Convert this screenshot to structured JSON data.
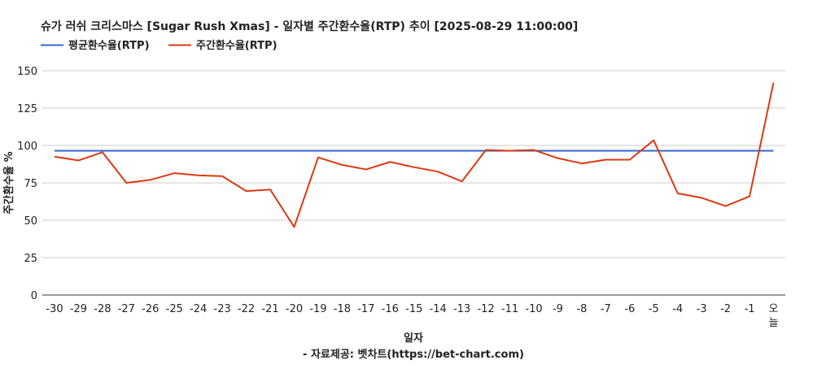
{
  "chart_data": {
    "type": "line",
    "title": "슈가 러쉬 크리스마스 [Sugar Rush Xmas] - 일자별 주간환수율(RTP) 추이 [2025-08-29 11:00:00]",
    "xlabel": "일자",
    "ylabel": "주간환수율 %",
    "source": "- 자료제공: 벳차트(https://bet-chart.com)",
    "ylim": [
      0,
      150
    ],
    "yticks": [
      0,
      25,
      50,
      75,
      100,
      125,
      150
    ],
    "grid": true,
    "legend_position": "top-left",
    "categories": [
      "-30",
      "-29",
      "-28",
      "-27",
      "-26",
      "-25",
      "-24",
      "-23",
      "-22",
      "-21",
      "-20",
      "-19",
      "-18",
      "-17",
      "-16",
      "-15",
      "-14",
      "-13",
      "-12",
      "-11",
      "-10",
      "-9",
      "-8",
      "-7",
      "-6",
      "-5",
      "-4",
      "-3",
      "-2",
      "-1",
      "오늘"
    ],
    "series": [
      {
        "name": "평균환수율(RTP)",
        "color": "#3366cc",
        "values": [
          96.5,
          96.5,
          96.5,
          96.5,
          96.5,
          96.5,
          96.5,
          96.5,
          96.5,
          96.5,
          96.5,
          96.5,
          96.5,
          96.5,
          96.5,
          96.5,
          96.5,
          96.5,
          96.5,
          96.5,
          96.5,
          96.5,
          96.5,
          96.5,
          96.5,
          96.5,
          96.5,
          96.5,
          96.5,
          96.5,
          96.5
        ]
      },
      {
        "name": "주간환수율(RTP)",
        "color": "#dc3912",
        "values": [
          92.5,
          90.0,
          95.5,
          75.0,
          77.0,
          81.5,
          80.0,
          79.5,
          69.5,
          70.5,
          45.5,
          92.0,
          87.0,
          84.0,
          89.0,
          85.5,
          82.5,
          76.0,
          97.0,
          96.5,
          97.0,
          91.5,
          88.0,
          90.5,
          90.5,
          103.5,
          68.0,
          65.0,
          59.5,
          66.0,
          142.0
        ]
      }
    ]
  }
}
